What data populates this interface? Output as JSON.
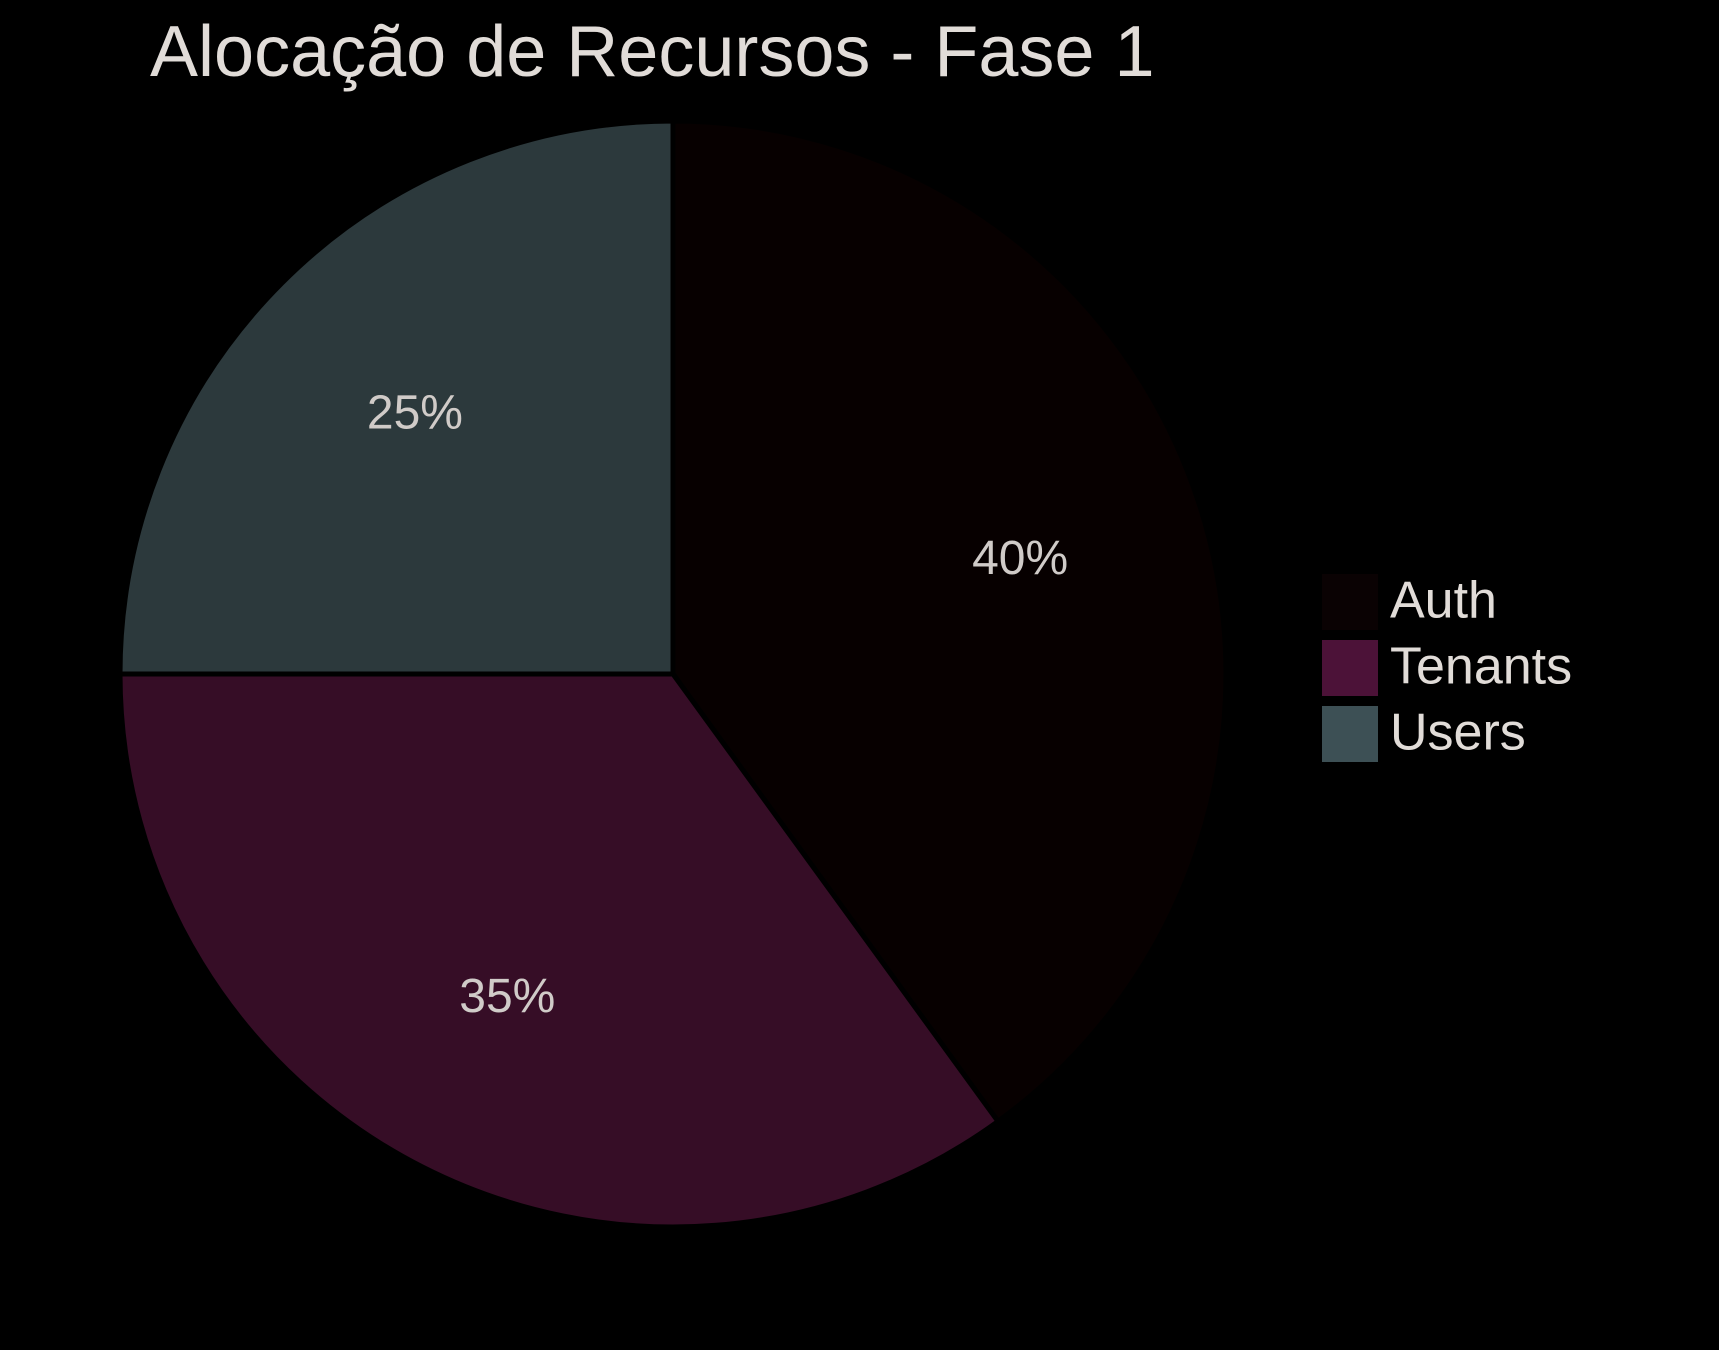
{
  "chart_data": {
    "type": "pie",
    "title": "Alocação de Recursos - Fase 1",
    "slices": [
      {
        "label": "Auth",
        "value": 40,
        "display": "40%",
        "color": "#070000"
      },
      {
        "label": "Tenants",
        "value": 35,
        "display": "35%",
        "color": "#360d26"
      },
      {
        "label": "Users",
        "value": 25,
        "display": "25%",
        "color": "#2c393c"
      }
    ],
    "legend": {
      "placement": "right",
      "items": [
        {
          "label": "Auth",
          "color": "#0a0203"
        },
        {
          "label": "Tenants",
          "color": "#4c1238"
        },
        {
          "label": "Users",
          "color": "#3d5055"
        }
      ]
    },
    "background_color": "#000000",
    "text_color": "#e1dcd8",
    "label_color": "#d0cbc8"
  }
}
